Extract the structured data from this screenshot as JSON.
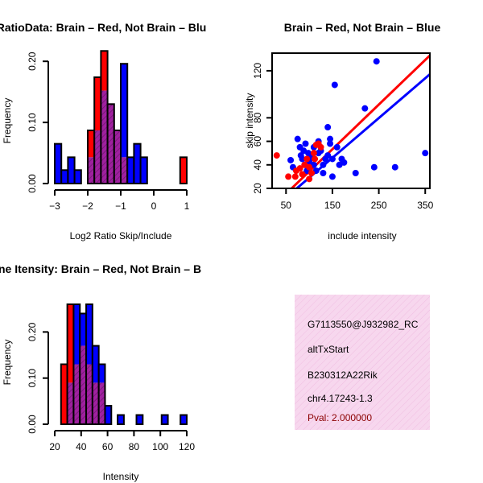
{
  "colors": {
    "red": "#ff0000",
    "blue": "#0000ff",
    "overlap": "#a020a0",
    "hatch": "#6a1a6a",
    "legend_bg": "#f7d7ee",
    "pval": "#8b0000"
  },
  "chart_data": [
    {
      "type": "bar",
      "title": "RatioData: Brain – Red, Not Brain – Blu",
      "xlabel": "Log2 Ratio Skip/Include",
      "ylabel": "Frequency",
      "xlim": [
        -3,
        1
      ],
      "ylim": [
        0,
        0.22
      ],
      "xticks": [
        "−3",
        "−2",
        "−1",
        "0",
        "1"
      ],
      "yticks": [
        "0.00",
        "0.10",
        "0.20"
      ],
      "bin_width": 0.2,
      "bin_starts": [
        -3.0,
        -2.8,
        -2.6,
        -2.4,
        -2.2,
        -2.0,
        -1.8,
        -1.6,
        -1.4,
        -1.2,
        -1.0,
        -0.8,
        -0.6,
        -0.4,
        -0.2,
        0.0,
        0.2,
        0.4,
        0.6,
        0.8
      ],
      "series": [
        {
          "name": "Brain",
          "color": "red",
          "values": [
            0,
            0,
            0,
            0,
            0,
            0.087,
            0.174,
            0.217,
            0.13,
            0.087,
            0.043,
            0,
            0,
            0,
            0,
            0,
            0,
            0,
            0,
            0.043
          ]
        },
        {
          "name": "Not Brain",
          "color": "blue",
          "values": [
            0.065,
            0.022,
            0.043,
            0.022,
            0,
            0.043,
            0.087,
            0.152,
            0.13,
            0.087,
            0.196,
            0.043,
            0.065,
            0.043,
            0,
            0,
            0,
            0,
            0,
            0
          ]
        }
      ]
    },
    {
      "type": "scatter",
      "title": "Brain – Red, Not Brain – Blue",
      "xlabel": "include intensity",
      "ylabel": "skip intensity",
      "xlim": [
        20,
        360
      ],
      "ylim": [
        20,
        135
      ],
      "xticks": [
        50,
        150,
        250,
        350
      ],
      "yticks": [
        20,
        40,
        60,
        80,
        120
      ],
      "series": [
        {
          "name": "Brain",
          "color": "red",
          "x": [
            30,
            55,
            72,
            80,
            90,
            95,
            100,
            105,
            110,
            115,
            120,
            125,
            70,
            85,
            100,
            112
          ],
          "y": [
            48,
            30,
            35,
            37,
            40,
            45,
            28,
            33,
            50,
            57,
            58,
            55,
            30,
            32,
            38,
            45
          ]
        },
        {
          "name": "Not Brain",
          "color": "blue",
          "x": [
            60,
            65,
            75,
            80,
            82,
            85,
            88,
            90,
            92,
            95,
            98,
            100,
            100,
            105,
            110,
            110,
            115,
            120,
            120,
            125,
            130,
            135,
            140,
            140,
            145,
            150,
            155,
            160,
            165,
            170,
            175,
            200,
            220,
            240,
            245,
            285,
            350,
            145,
            150,
            130
          ],
          "y": [
            44,
            38,
            62,
            55,
            48,
            45,
            52,
            40,
            58,
            35,
            50,
            45,
            43,
            47,
            55,
            40,
            35,
            50,
            60,
            52,
            33,
            45,
            72,
            48,
            58,
            30,
            108,
            55,
            40,
            45,
            42,
            33,
            88,
            38,
            128,
            38,
            50,
            62,
            45,
            40
          ]
        }
      ],
      "fit_lines": [
        {
          "name": "Brain",
          "color": "red",
          "x": [
            20,
            360
          ],
          "y": [
            4,
            133
          ]
        },
        {
          "name": "Not Brain",
          "color": "blue",
          "x": [
            20,
            360
          ],
          "y": [
            2,
            117
          ]
        }
      ]
    },
    {
      "type": "bar",
      "title": "Exon Intensity: Brain – Red, Not Brain – B",
      "title_visible": "ne Itensity: Brain – Red, Not Brain – B",
      "xlabel": "Intensity",
      "ylabel": "Frequency",
      "xlim": [
        20,
        125
      ],
      "ylim": [
        0,
        0.26
      ],
      "xticks": [
        20,
        40,
        60,
        80,
        100,
        120
      ],
      "yticks": [
        "0.00",
        "0.10",
        "0.20"
      ],
      "bin_width": 5,
      "bin_starts": [
        25,
        30,
        35,
        40,
        45,
        50,
        55,
        60,
        65,
        70,
        75,
        80,
        85,
        90,
        95,
        100,
        105,
        110,
        115,
        120
      ],
      "series": [
        {
          "name": "Brain",
          "color": "red",
          "values": [
            0.13,
            0.26,
            0.13,
            0.17,
            0.13,
            0.09,
            0.09,
            0,
            0,
            0,
            0,
            0,
            0,
            0,
            0,
            0,
            0,
            0,
            0,
            0
          ]
        },
        {
          "name": "Not Brain",
          "color": "blue",
          "values": [
            0,
            0.09,
            0.26,
            0.24,
            0.26,
            0.17,
            0.13,
            0.04,
            0,
            0.02,
            0,
            0,
            0.02,
            0,
            0,
            0,
            0.02,
            0,
            0,
            0.02
          ]
        }
      ]
    }
  ],
  "info_box": {
    "lines": [
      "G7113550@J932982_RC",
      "altTxStart",
      "B230312A22Rik",
      "chr4.17243-1.3"
    ],
    "pval": "Pval: 2.000000"
  }
}
